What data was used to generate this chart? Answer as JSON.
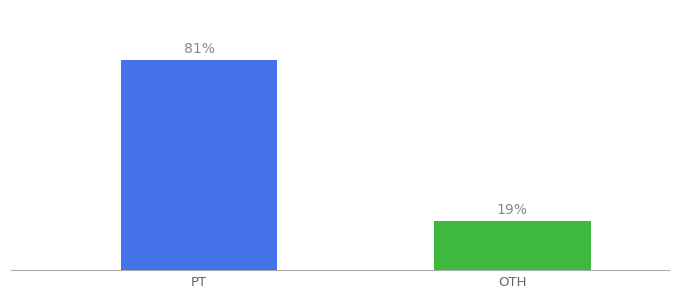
{
  "categories": [
    "PT",
    "OTH"
  ],
  "values": [
    81,
    19
  ],
  "bar_colors": [
    "#4472e8",
    "#3dba3d"
  ],
  "bar_labels": [
    "81%",
    "19%"
  ],
  "background_color": "#ffffff",
  "label_fontsize": 10,
  "tick_fontsize": 9.5,
  "label_color": "#888888",
  "tick_color": "#666666",
  "ylim": [
    0,
    100
  ],
  "bar_width": 0.5,
  "xlim": [
    -0.3,
    1.8
  ],
  "x_positions": [
    0.3,
    1.3
  ]
}
